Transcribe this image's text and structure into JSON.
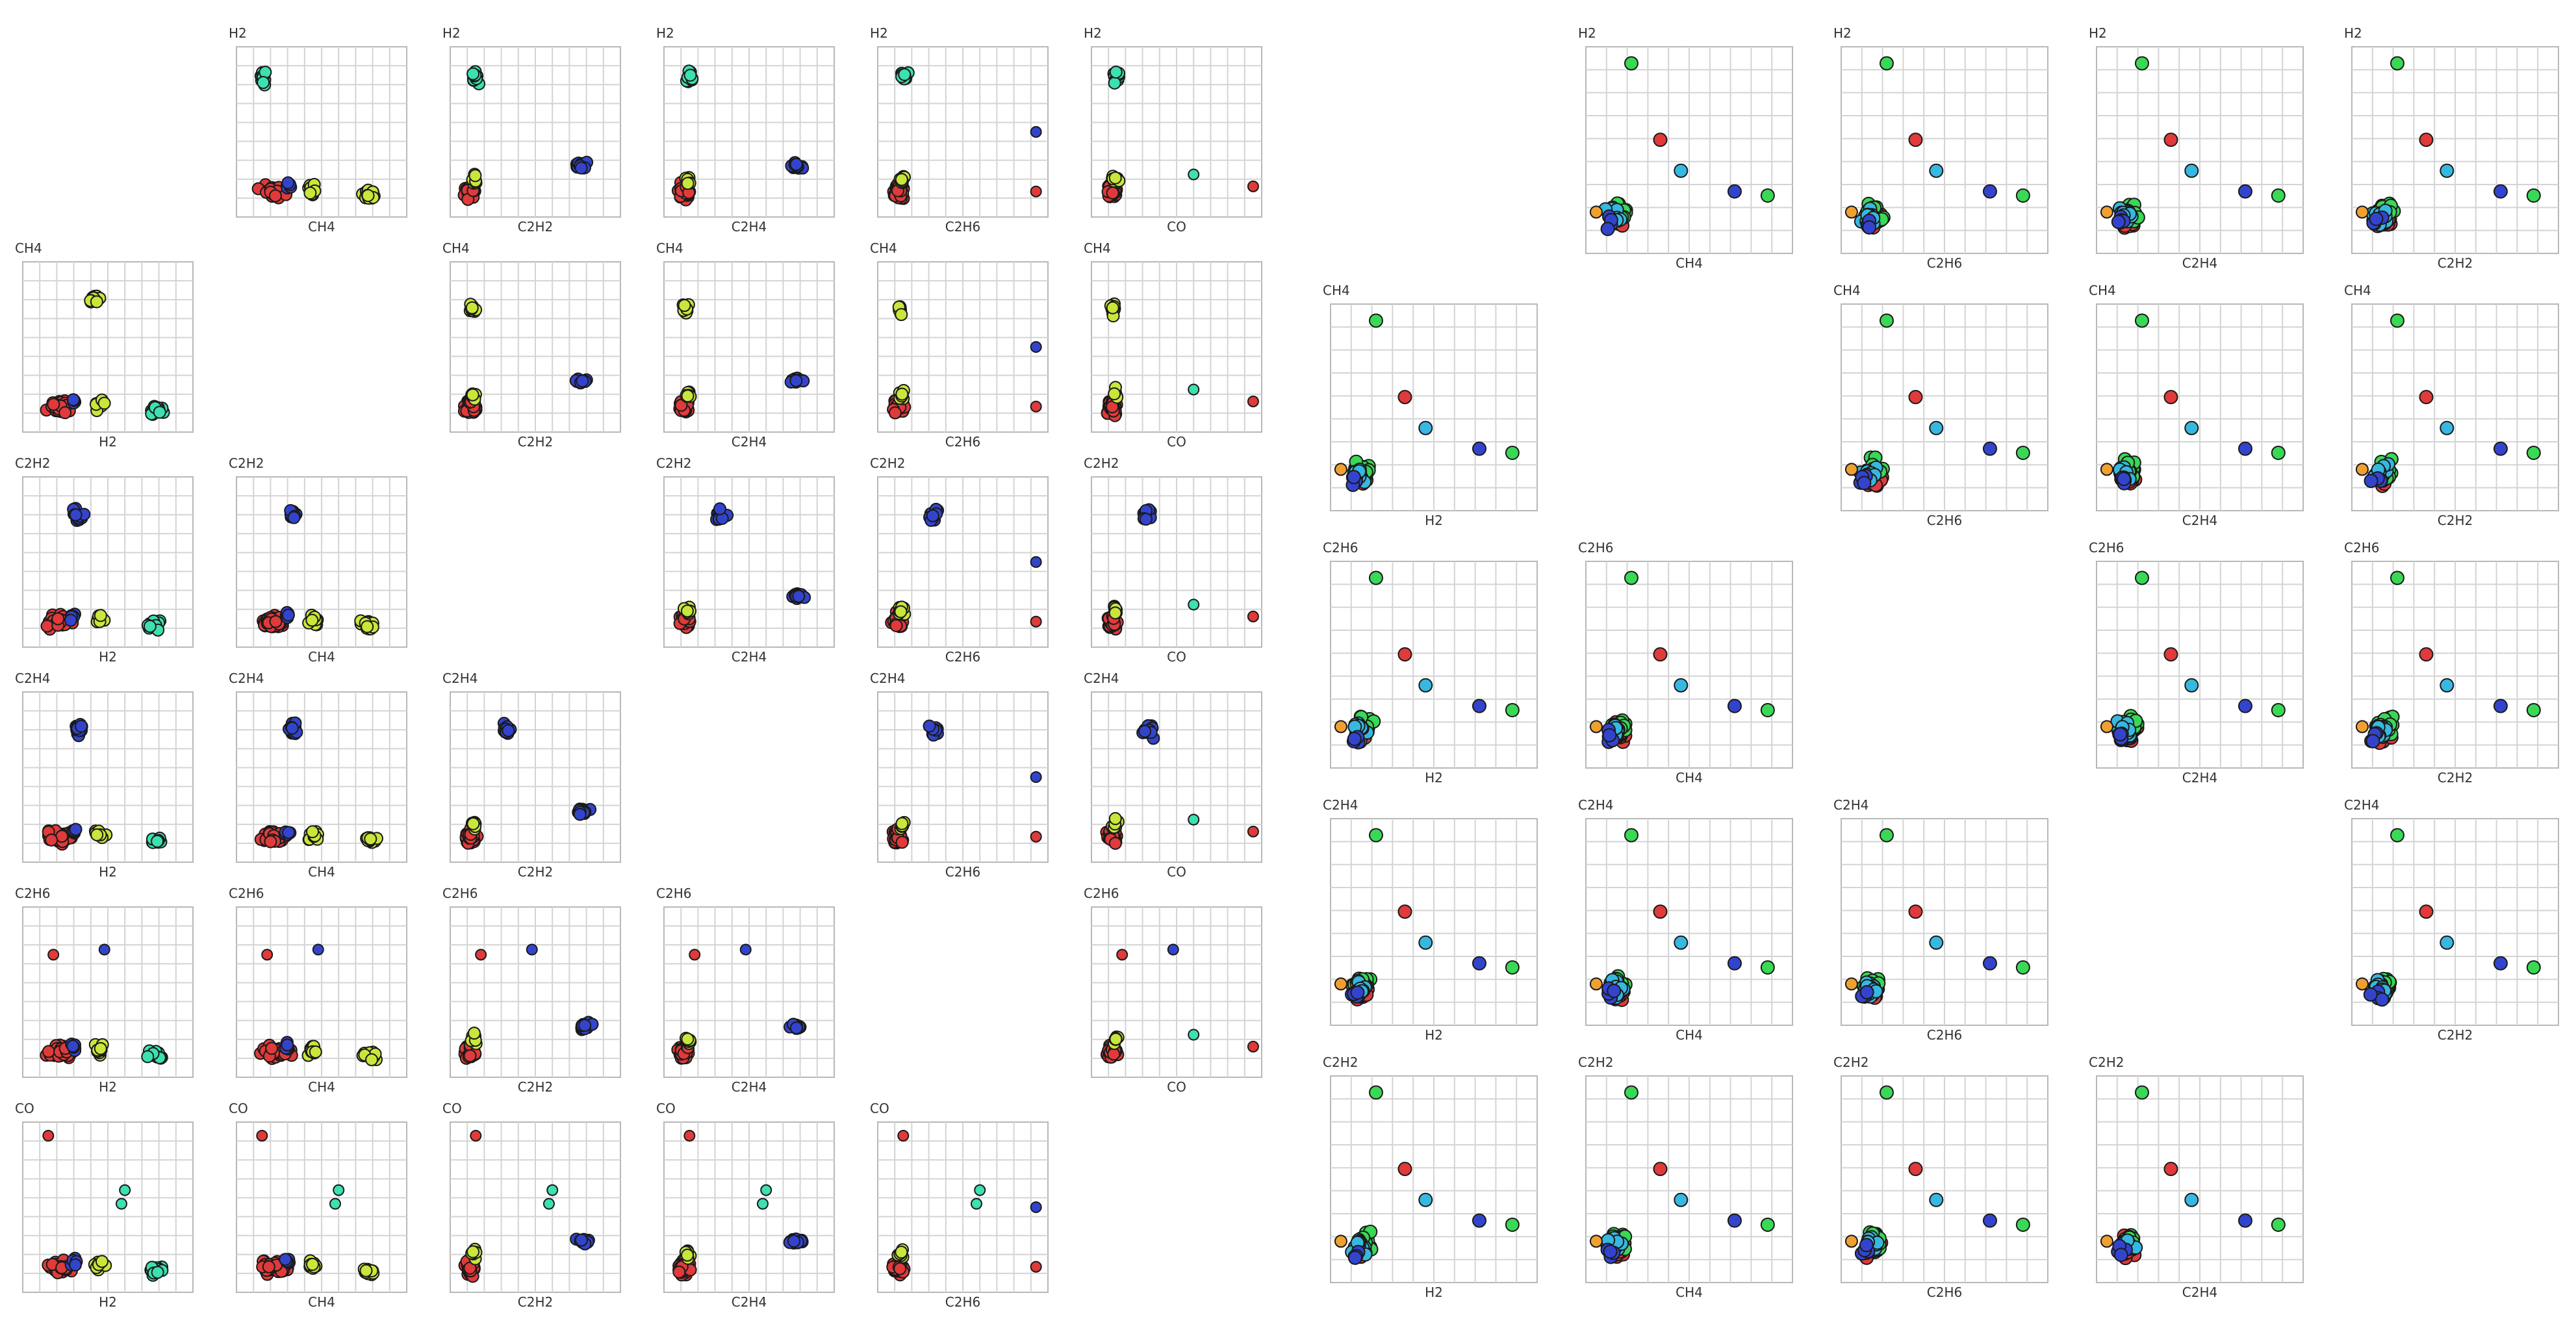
{
  "top_note": "",
  "chart_data": [
    {
      "type": "scatter",
      "name": "left-scatter-matrix",
      "matrix_variables": [
        "H2",
        "CH4",
        "C2H2",
        "C2H4",
        "C2H6",
        "CO"
      ],
      "missing_cells": [
        [
          0,
          0
        ],
        [
          1,
          1
        ],
        [
          2,
          2
        ],
        [
          3,
          3
        ],
        [
          4,
          4
        ],
        [
          5,
          5
        ]
      ],
      "grid": true,
      "series": [
        {
          "color": "#e03a3a",
          "cluster": "main"
        },
        {
          "color": "#3344cc",
          "cluster": "blue"
        },
        {
          "color": "#c9e63a",
          "cluster": "yellow"
        },
        {
          "color": "#3de0b0",
          "cluster": "teal"
        }
      ]
    },
    {
      "type": "scatter",
      "name": "right-scatter-matrix",
      "matrix_variables_columns": [
        "H2",
        "CH4",
        "C2H6",
        "C2H4",
        "C2H2"
      ],
      "matrix_variables_rows": [
        "H2",
        "CH4",
        "C2H6",
        "C2H4",
        "C2H2"
      ],
      "missing_cells": [
        [
          0,
          0
        ],
        [
          1,
          1
        ],
        [
          2,
          2
        ],
        [
          3,
          3
        ],
        [
          4,
          4
        ]
      ],
      "grid": true,
      "series": [
        {
          "color": "#e03a3a",
          "cluster": "main"
        },
        {
          "color": "#3344cc",
          "cluster": "blue"
        },
        {
          "color": "#39d855",
          "cluster": "green"
        },
        {
          "color": "#37b8e0",
          "cluster": "cyan"
        },
        {
          "color": "#f0a030",
          "cluster": "orange"
        }
      ]
    }
  ]
}
